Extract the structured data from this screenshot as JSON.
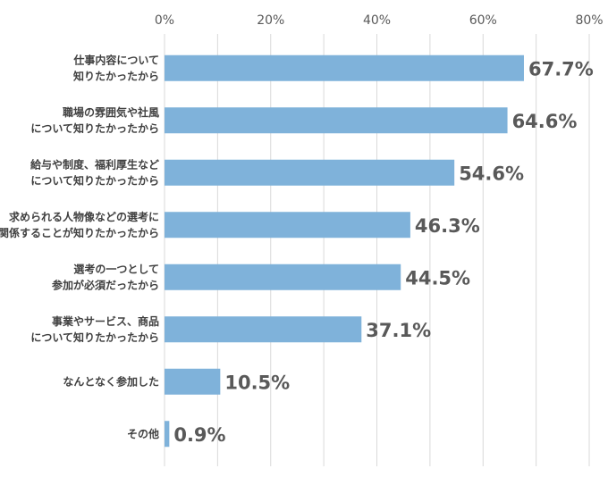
{
  "chart_data": {
    "type": "bar",
    "orientation": "horizontal",
    "categories": [
      [
        "仕事内容について",
        "知りたかったから"
      ],
      [
        "職場の雰囲気や社風",
        "について知りたかったから"
      ],
      [
        "給与や制度、福利厚生など",
        "について知りたかったから"
      ],
      [
        "求められる人物像などの選考に",
        "関係することが知りたかったから"
      ],
      [
        "選考の一つとして",
        "参加が必須だったから"
      ],
      [
        "事業やサービス、商品",
        "について知りたかったから"
      ],
      [
        "なんとなく参加した"
      ],
      [
        "その他"
      ]
    ],
    "values": [
      67.7,
      64.6,
      54.6,
      46.3,
      44.5,
      37.1,
      10.5,
      0.9
    ],
    "data_labels": [
      "67.7%",
      "64.6%",
      "54.6%",
      "46.3%",
      "44.5%",
      "37.1%",
      "10.5%",
      "0.9%"
    ],
    "xlim": [
      0,
      80
    ],
    "x_ticks": [
      "0%",
      "20%",
      "40%",
      "60%",
      "80%"
    ],
    "x_tick_values": [
      0,
      20,
      40,
      60,
      80
    ],
    "x_axis_position": "top",
    "grid": true,
    "bar_color": "#7FB2DA",
    "grid_color": "#D9D9D9"
  }
}
